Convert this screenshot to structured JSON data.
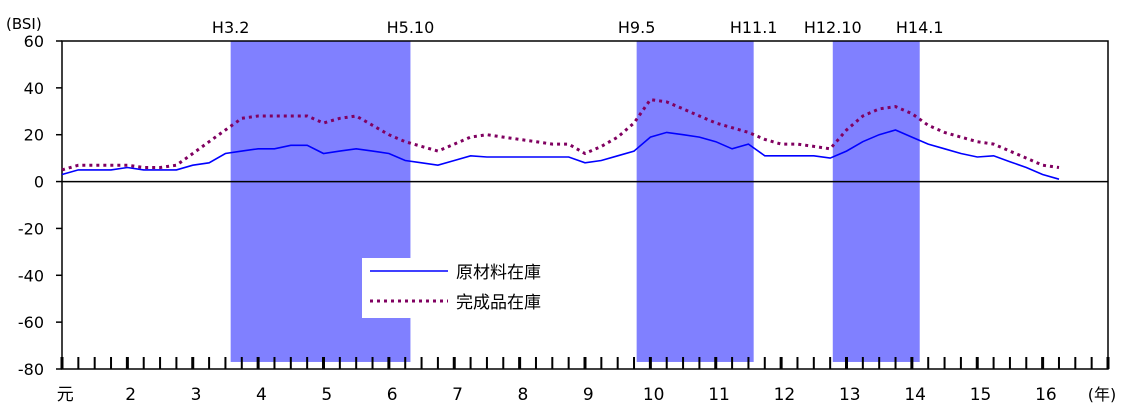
{
  "chart_data": {
    "type": "line",
    "ylabel": "(BSI)",
    "xunit": "(年)",
    "ylim": [
      -80,
      60
    ],
    "yticks": [
      -80,
      -60,
      -40,
      -20,
      0,
      20,
      40,
      60
    ],
    "categories": [
      "元",
      "2",
      "3",
      "4",
      "5",
      "6",
      "7",
      "8",
      "9",
      "10",
      "11",
      "12",
      "13",
      "14",
      "15",
      "16"
    ],
    "shaded_periods": [
      {
        "label": "H3.2",
        "end_label": "H5.10",
        "start": 3.58,
        "end": 6.33
      },
      {
        "label": "H9.5",
        "end_label": "H11.1",
        "start": 9.79,
        "end": 11.58
      },
      {
        "label": "H12.10",
        "end_label": "H14.1",
        "start": 12.79,
        "end": 14.12
      }
    ],
    "legend": {
      "position": "center-bottom"
    },
    "series": [
      {
        "name": "原材料在庫",
        "color": "#0000ff",
        "style": "solid",
        "x": [
          1.0,
          1.25,
          1.5,
          1.75,
          2.0,
          2.25,
          2.5,
          2.75,
          3.0,
          3.25,
          3.5,
          3.75,
          4.0,
          4.25,
          4.5,
          4.75,
          5.0,
          5.25,
          5.5,
          5.75,
          6.0,
          6.25,
          6.5,
          6.75,
          7.0,
          7.25,
          7.5,
          7.75,
          8.0,
          8.25,
          8.5,
          8.75,
          9.0,
          9.25,
          9.5,
          9.75,
          10.0,
          10.25,
          10.5,
          10.75,
          11.0,
          11.25,
          11.5,
          11.75,
          12.0,
          12.25,
          12.5,
          12.75,
          13.0,
          13.25,
          13.5,
          13.75,
          14.0,
          14.25,
          14.5,
          14.75,
          15.0,
          15.25,
          15.5,
          15.75,
          16.0,
          16.25
        ],
        "values": [
          3,
          5,
          5,
          5,
          6,
          5,
          5,
          5,
          7,
          8,
          12,
          13,
          14,
          14,
          15.5,
          15.5,
          12,
          13,
          14,
          13,
          12,
          9,
          8,
          7,
          9,
          11,
          10.5,
          10.5,
          10.5,
          10.5,
          10.5,
          10.5,
          8,
          9,
          11,
          13,
          19,
          21,
          20,
          19,
          17,
          14,
          16,
          11,
          11,
          11,
          11,
          10,
          13,
          17,
          20,
          22,
          19,
          16,
          14,
          12,
          10.5,
          11,
          8.5,
          6,
          3,
          1
        ]
      },
      {
        "name": "完成品在庫",
        "color": "#800060",
        "style": "dotted",
        "x": [
          1.0,
          1.25,
          1.5,
          1.75,
          2.0,
          2.25,
          2.5,
          2.75,
          3.0,
          3.25,
          3.5,
          3.75,
          4.0,
          4.25,
          4.5,
          4.75,
          5.0,
          5.25,
          5.5,
          5.75,
          6.0,
          6.25,
          6.5,
          6.75,
          7.0,
          7.25,
          7.5,
          7.75,
          8.0,
          8.25,
          8.5,
          8.75,
          9.0,
          9.25,
          9.5,
          9.75,
          10.0,
          10.25,
          10.5,
          10.75,
          11.0,
          11.25,
          11.5,
          11.75,
          12.0,
          12.25,
          12.5,
          12.75,
          13.0,
          13.25,
          13.5,
          13.75,
          14.0,
          14.25,
          14.5,
          14.75,
          15.0,
          15.25,
          15.5,
          15.75,
          16.0,
          16.25
        ],
        "values": [
          5,
          7,
          7,
          7,
          7,
          6,
          6,
          7,
          12,
          17,
          22,
          27,
          28,
          28,
          28,
          28,
          25,
          27,
          28,
          24,
          20,
          17,
          15,
          13,
          16,
          19,
          20,
          19,
          18,
          17,
          16,
          16,
          12,
          15,
          19,
          25,
          35,
          34,
          31,
          28,
          25,
          23,
          21,
          18,
          16,
          16,
          15,
          14,
          22,
          28,
          31,
          32,
          29,
          24,
          21,
          19,
          17,
          16,
          13,
          10,
          7,
          6
        ]
      }
    ]
  }
}
